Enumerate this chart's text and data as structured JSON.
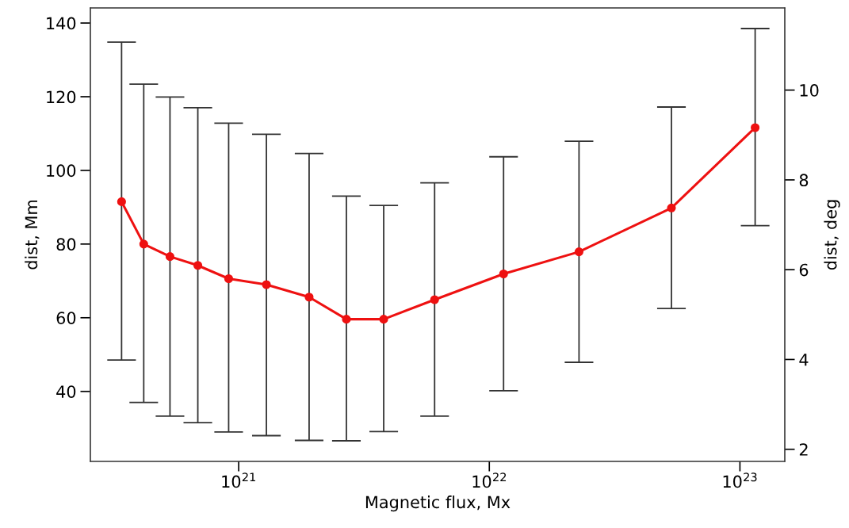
{
  "chart_data": {
    "type": "line",
    "xlabel": "Magnetic flux, Mx",
    "ylabel": "dist, Mm",
    "y2label": "dist, deg",
    "log": "x",
    "grid": false,
    "marker": "circle",
    "line_style": "solid",
    "xlim": [
      2.56e+20,
      1.51e+23
    ],
    "xticks": [
      {
        "value": 1e+21,
        "label": "10$^{21}$"
      },
      {
        "value": 1e+22,
        "label": "10$^{22}$"
      },
      {
        "value": 1e+23,
        "label": "10$^{23}$"
      }
    ],
    "ylim": [
      21.0,
      144.1
    ],
    "yticks": [
      40,
      60,
      80,
      100,
      120,
      140
    ],
    "y2lim": [
      1.73,
      11.83
    ],
    "y2ticks": [
      2,
      4,
      6,
      8,
      10
    ],
    "x": [
      3.41e+20,
      4.18e+20,
      5.32e+20,
      6.87e+20,
      9.12e+20,
      1.29e+21,
      1.91e+21,
      2.69e+21,
      3.79e+21,
      6.05e+21,
      1.14e+22,
      2.28e+22,
      5.33e+22,
      1.15e+23
    ],
    "series": [
      {
        "color": "#ee1111",
        "values": [
          91.5,
          80.0,
          76.6,
          74.2,
          70.6,
          69.0,
          65.6,
          59.6,
          59.6,
          64.9,
          71.9,
          77.9,
          89.8,
          111.6
        ],
        "errors": [
          [
            48.5,
            134.8
          ],
          [
            37.0,
            123.4
          ],
          [
            33.3,
            119.9
          ],
          [
            31.5,
            117.0
          ],
          [
            29.0,
            112.8
          ],
          [
            28.0,
            109.8
          ],
          [
            26.7,
            104.6
          ],
          [
            26.6,
            93.0
          ],
          [
            29.1,
            90.5
          ],
          [
            33.3,
            96.6
          ],
          [
            40.2,
            103.7
          ],
          [
            47.9,
            107.9
          ],
          [
            62.5,
            117.2
          ],
          [
            85.0,
            138.5
          ]
        ]
      }
    ]
  }
}
